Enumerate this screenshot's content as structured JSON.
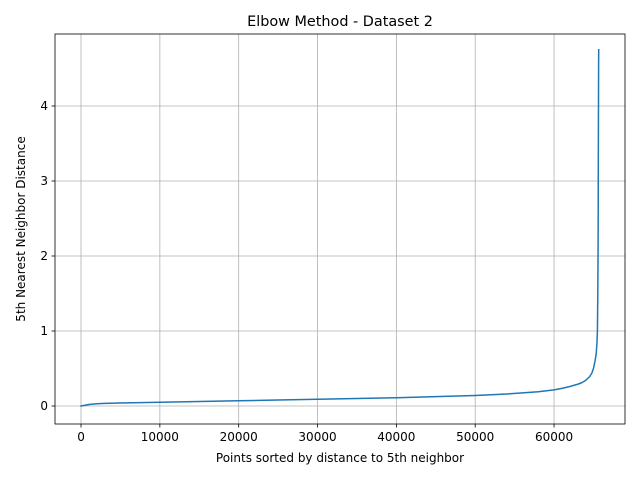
{
  "chart_data": {
    "type": "line",
    "title": "Elbow Method - Dataset 2",
    "xlabel": "Points sorted by distance to 5th neighbor",
    "ylabel": "5th Nearest Neighbor Distance",
    "xlim": [
      -3300,
      69000
    ],
    "ylim": [
      -0.24,
      4.96
    ],
    "xticks": [
      0,
      10000,
      20000,
      30000,
      40000,
      50000,
      60000
    ],
    "xtick_labels": [
      "0",
      "10000",
      "20000",
      "30000",
      "40000",
      "50000",
      "60000"
    ],
    "yticks": [
      0,
      1,
      2,
      3,
      4
    ],
    "ytick_labels": [
      "0",
      "1",
      "2",
      "3",
      "4"
    ],
    "grid": true,
    "series": [
      {
        "color": "#1f77b4",
        "x": [
          0,
          500,
          1000,
          2000,
          3000,
          5000,
          10000,
          15000,
          20000,
          25000,
          30000,
          35000,
          40000,
          45000,
          50000,
          52000,
          54000,
          56000,
          58000,
          60000,
          61000,
          62000,
          63000,
          63500,
          64000,
          64500,
          64800,
          65000,
          65200,
          65350,
          65450,
          65500,
          65550,
          65580,
          65600,
          65610,
          65620,
          65630,
          65640,
          65645,
          65650,
          65655,
          65660,
          65665
        ],
        "y": [
          0.0,
          0.01,
          0.02,
          0.03,
          0.035,
          0.04,
          0.05,
          0.06,
          0.07,
          0.08,
          0.09,
          0.1,
          0.11,
          0.125,
          0.14,
          0.15,
          0.16,
          0.175,
          0.19,
          0.215,
          0.235,
          0.26,
          0.29,
          0.31,
          0.34,
          0.39,
          0.44,
          0.5,
          0.6,
          0.7,
          0.85,
          1.0,
          1.5,
          2.0,
          2.5,
          3.0,
          3.4,
          3.8,
          4.1,
          4.3,
          4.5,
          4.6,
          4.7,
          4.75
        ]
      }
    ]
  }
}
